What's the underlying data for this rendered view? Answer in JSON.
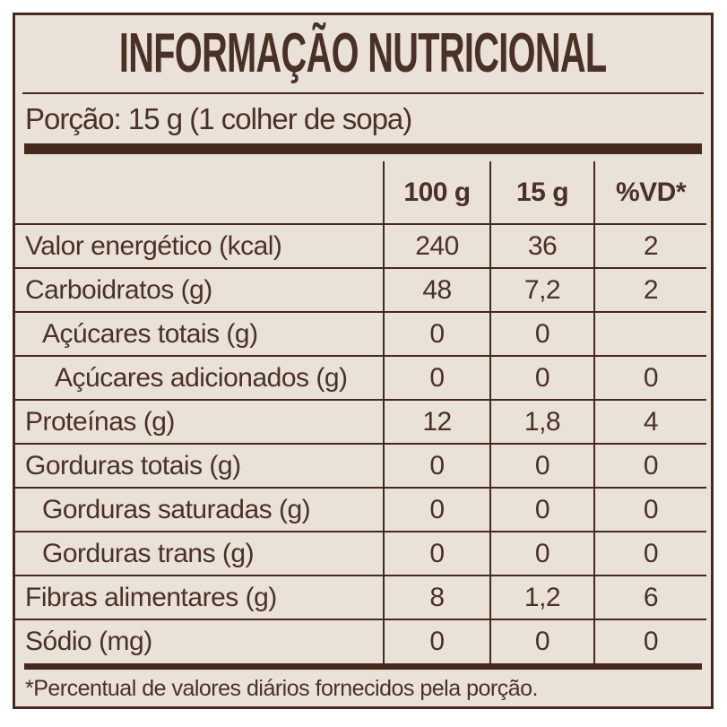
{
  "title": "INFORMAÇÃO NUTRICIONAL",
  "serving": "Porção: 15 g (1 colher de sopa)",
  "table": {
    "columns": [
      "100 g",
      "15 g",
      "%VD*"
    ],
    "rows": [
      {
        "label": "Valor energético (kcal)",
        "indent": 0,
        "values": [
          "240",
          "36",
          "2"
        ]
      },
      {
        "label": "Carboidratos (g)",
        "indent": 0,
        "values": [
          "48",
          "7,2",
          "2"
        ]
      },
      {
        "label": "Açúcares totais (g)",
        "indent": 1,
        "values": [
          "0",
          "0",
          ""
        ]
      },
      {
        "label": "Açúcares adicionados (g)",
        "indent": 2,
        "values": [
          "0",
          "0",
          "0"
        ]
      },
      {
        "label": "Proteínas (g)",
        "indent": 0,
        "values": [
          "12",
          "1,8",
          "4"
        ]
      },
      {
        "label": "Gorduras totais (g)",
        "indent": 0,
        "values": [
          "0",
          "0",
          "0"
        ]
      },
      {
        "label": "Gorduras saturadas (g)",
        "indent": 1,
        "values": [
          "0",
          "0",
          "0"
        ]
      },
      {
        "label": "Gorduras trans (g)",
        "indent": 1,
        "values": [
          "0",
          "0",
          "0"
        ]
      },
      {
        "label": "Fibras alimentares (g)",
        "indent": 0,
        "values": [
          "8",
          "1,2",
          "6"
        ]
      },
      {
        "label": "Sódio (mg)",
        "indent": 0,
        "values": [
          "0",
          "0",
          "0"
        ]
      }
    ]
  },
  "footnote": "*Percentual de valores diários fornecidos pela porção.",
  "colors": {
    "text_brown": "#45291d",
    "label_background": "#eae2d8",
    "page_background": "#ffffff"
  }
}
